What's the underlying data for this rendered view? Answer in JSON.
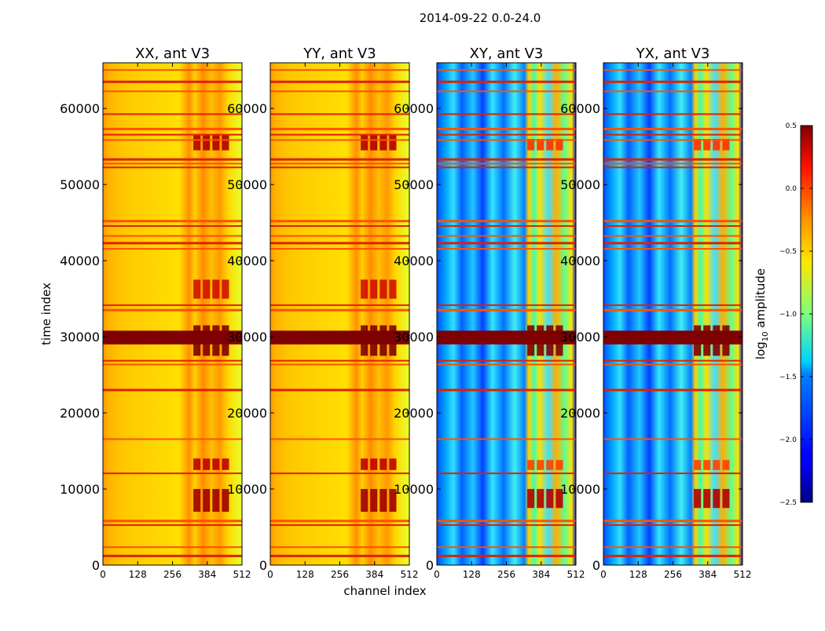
{
  "suptitle": "2014-09-22 0.0-24.0",
  "chart_data": {
    "type": "heatmap",
    "title": "2014-09-22 0.0-24.0",
    "xlabel": "channel index",
    "ylabel": "time index",
    "xlim": [
      0,
      512
    ],
    "ylim": [
      0,
      66000
    ],
    "xticks": [
      0,
      128,
      256,
      384,
      512
    ],
    "yticks": [
      0,
      10000,
      20000,
      30000,
      40000,
      50000,
      60000
    ],
    "panels": [
      {
        "title": "XX, ant V3",
        "kind": "auto"
      },
      {
        "title": "YY, ant V3",
        "kind": "auto"
      },
      {
        "title": "XY, ant V3",
        "kind": "cross"
      },
      {
        "title": "YX, ant V3",
        "kind": "cross"
      }
    ],
    "rfi_band_channels": [
      330,
      470
    ],
    "flagged_time_rows": [
      1200,
      2300,
      5200,
      5800,
      12000,
      16500,
      23000,
      26300,
      26800,
      33500,
      34100,
      41500,
      42300,
      43200,
      44500,
      45200,
      52200,
      52700,
      53300,
      55800,
      56500,
      57300,
      59200,
      62200,
      63500,
      65000
    ],
    "bright_time_band": [
      29000,
      30800
    ],
    "colorbar": {
      "label": "log10 amplitude",
      "label_base": "log",
      "label_sub": "10",
      "label_rest": " amplitude",
      "min": -2.5,
      "max": 0.5,
      "ticks": [
        0.5,
        0.0,
        -0.5,
        -1.0,
        -1.5,
        -2.0,
        -2.5
      ],
      "tick_labels": [
        "0.5",
        "0.0",
        "−0.5",
        "−1.0",
        "−1.5",
        "−2.0",
        "−2.5"
      ],
      "colormap": "jet"
    }
  }
}
